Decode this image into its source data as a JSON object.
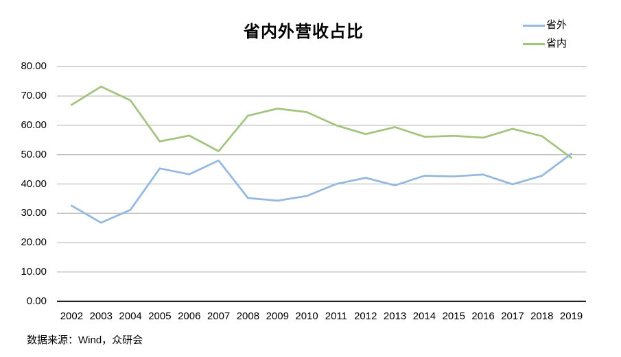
{
  "source_note": "数据来源：Wind，众研会",
  "colors": {
    "background": "#FFFFFF",
    "gridline": "#BFBFBF",
    "axis": "#000000",
    "text": "#000000",
    "series_outside": "#95B8DF",
    "series_inside": "#A2C47E"
  },
  "chart_data": {
    "type": "line",
    "title": "省内外营收占比",
    "xlabel": "",
    "ylabel": "",
    "grid": true,
    "legend_position": "top-right",
    "ylim": [
      0,
      80
    ],
    "categories": [
      "2002",
      "2003",
      "2004",
      "2005",
      "2006",
      "2007",
      "2008",
      "2009",
      "2010",
      "2011",
      "2012",
      "2013",
      "2014",
      "2015",
      "2016",
      "2017",
      "2018",
      "2019"
    ],
    "series": [
      {
        "name": "省外",
        "color": "#95B8DF",
        "values": [
          32.6,
          26.8,
          31.2,
          45.3,
          43.3,
          48.0,
          35.2,
          34.3,
          35.9,
          40.0,
          42.1,
          39.5,
          42.8,
          42.6,
          43.2,
          39.9,
          42.8,
          50.3
        ]
      },
      {
        "name": "省内",
        "color": "#A2C47E",
        "values": [
          67.0,
          73.2,
          68.5,
          54.5,
          56.5,
          51.2,
          63.3,
          65.7,
          64.5,
          60.0,
          57.0,
          59.4,
          56.1,
          56.4,
          55.8,
          58.8,
          56.3,
          48.9
        ]
      }
    ],
    "ytick_values": [
      0,
      10,
      20,
      30,
      40,
      50,
      60,
      70,
      80
    ],
    "ytick_labels": [
      "0.00",
      "10.00",
      "20.00",
      "30.00",
      "40.00",
      "50.00",
      "60.00",
      "70.00",
      "80.00"
    ]
  }
}
